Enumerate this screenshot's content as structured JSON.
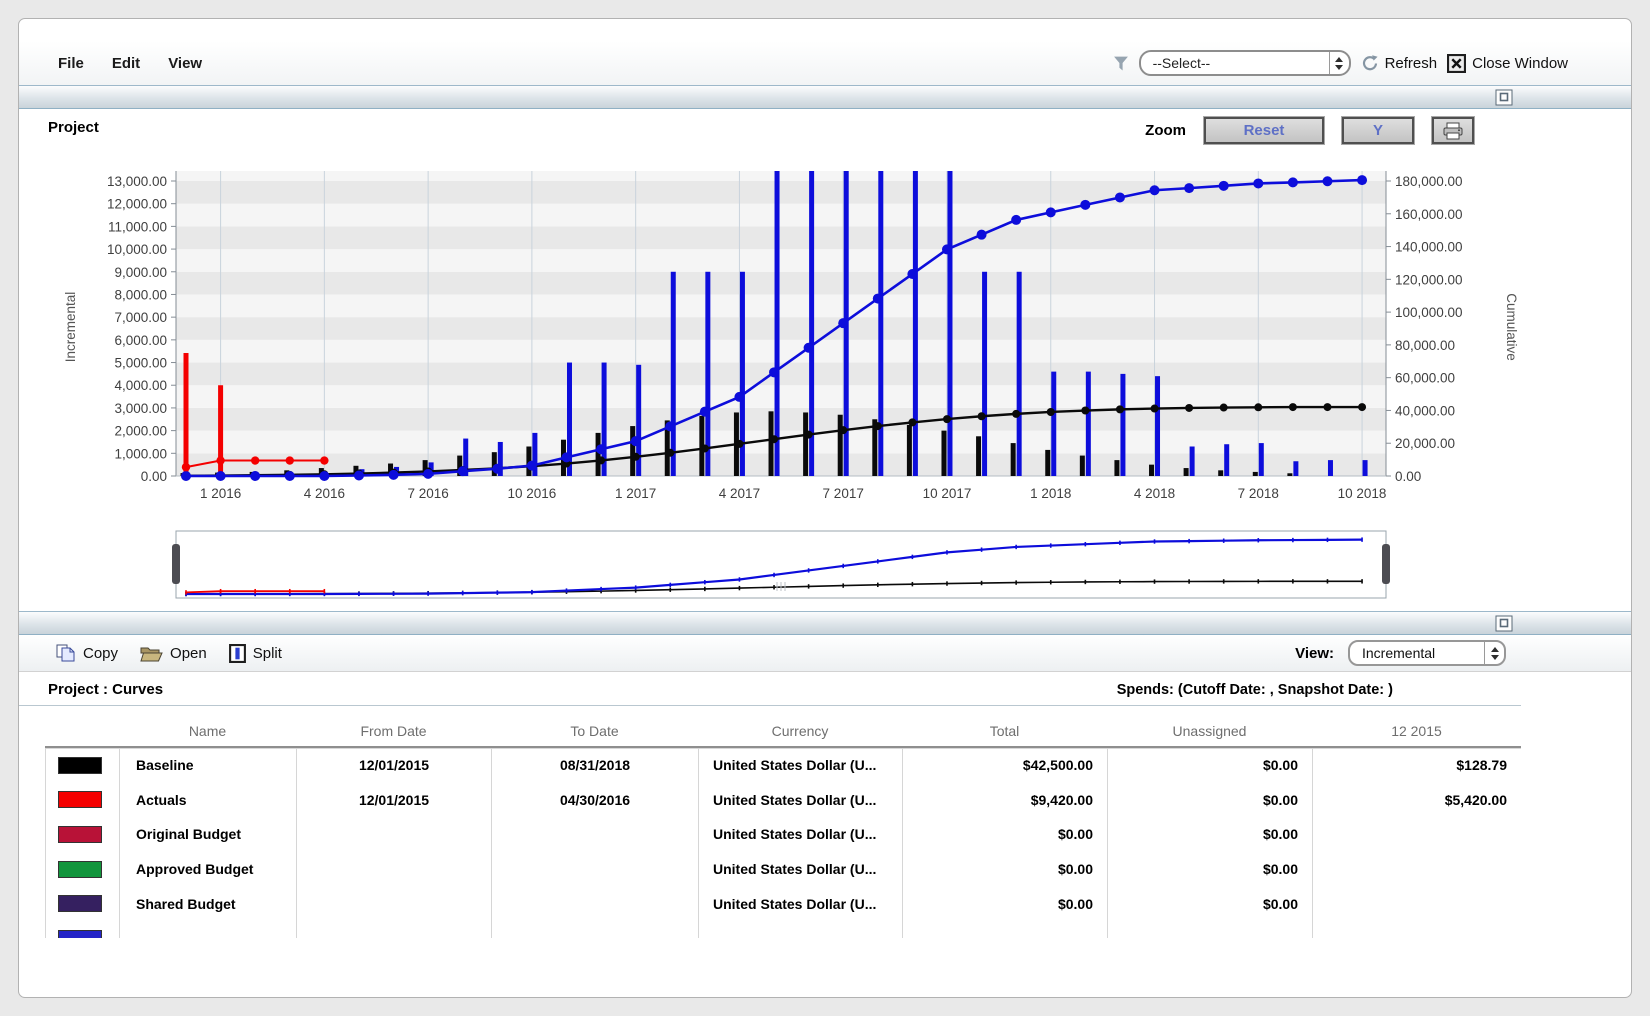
{
  "menubar": {
    "items": [
      "File",
      "Edit",
      "View"
    ],
    "filter_select_value": "--Select--",
    "refresh_label": "Refresh",
    "close_label": "Close Window"
  },
  "chart_panel": {
    "title": "Project",
    "zoom_label": "Zoom",
    "reset_label": "Reset",
    "y_label": "Y"
  },
  "chart_data": {
    "type": "combo-bar-line",
    "months": 35,
    "start_month": "12 2015",
    "left_axis": {
      "label": "Incremental",
      "min": 0,
      "max": 13000,
      "step": 1000,
      "tick_labels": [
        "0.00",
        "1,000.00",
        "2,000.00",
        "3,000.00",
        "4,000.00",
        "5,000.00",
        "6,000.00",
        "7,000.00",
        "8,000.00",
        "9,000.00",
        "10,000.00",
        "11,000.00",
        "12,000.00",
        "13,000.00"
      ]
    },
    "right_axis": {
      "label": "Cumulative",
      "min": 0,
      "max": 180000,
      "step": 20000,
      "tick_labels": [
        "0.00",
        "20,000.00",
        "40,000.00",
        "60,000.00",
        "80,000.00",
        "100,000.00",
        "120,000.00",
        "140,000.00",
        "160,000.00",
        "180,000.00"
      ]
    },
    "x_ticks": [
      {
        "label": "1 2016",
        "m": 1
      },
      {
        "label": "4 2016",
        "m": 4
      },
      {
        "label": "7 2016",
        "m": 7
      },
      {
        "label": "10 2016",
        "m": 10
      },
      {
        "label": "1 2017",
        "m": 13
      },
      {
        "label": "4 2017",
        "m": 16
      },
      {
        "label": "7 2017",
        "m": 19
      },
      {
        "label": "10 2017",
        "m": 22
      },
      {
        "label": "1 2018",
        "m": 25
      },
      {
        "label": "4 2018",
        "m": 28
      },
      {
        "label": "7 2018",
        "m": 31
      },
      {
        "label": "10 2018",
        "m": 34
      }
    ],
    "series": [
      {
        "name": "baseline-black",
        "color": "#0a0a0a",
        "incremental": [
          129,
          150,
          180,
          250,
          350,
          450,
          550,
          700,
          900,
          1050,
          1300,
          1600,
          1900,
          2200,
          2450,
          2650,
          2800,
          2850,
          2800,
          2700,
          2500,
          2250,
          2000,
          1750,
          1450,
          1150,
          900,
          700,
          500,
          350,
          250,
          180,
          120,
          0,
          0
        ],
        "line_end_month": 34
      },
      {
        "name": "actuals-red",
        "color": "#f40000",
        "incremental": [
          5420,
          4000,
          0,
          0,
          0,
          0,
          0,
          0,
          0,
          0,
          0,
          0,
          0,
          0,
          0,
          0,
          0,
          0,
          0,
          0,
          0,
          0,
          0,
          0,
          0,
          0,
          0,
          0,
          0,
          0,
          0,
          0,
          0,
          0,
          0
        ],
        "line_end_month": 4
      },
      {
        "name": "planned-blue",
        "color": "#0d0ddb",
        "incremental": [
          0,
          0,
          0,
          0,
          0,
          300,
          400,
          600,
          1650,
          1500,
          1900,
          5000,
          5000,
          4900,
          9000,
          9000,
          9000,
          15000,
          15000,
          15000,
          15000,
          15000,
          15000,
          9000,
          9000,
          4600,
          4600,
          4500,
          4400,
          1300,
          1400,
          1450,
          650,
          700,
          700
        ],
        "line_end_month": 34
      }
    ],
    "note": "bars = incremental (left axis), lines with dots = cumulative (right axis)"
  },
  "toolbar": {
    "copy_label": "Copy",
    "open_label": "Open",
    "split_label": "Split",
    "view_label": "View:",
    "view_value": "Incremental"
  },
  "table_section": {
    "title": "Project : Curves",
    "spends_label": "Spends: (Cutoff Date: , Snapshot Date: )",
    "columns": [
      "Name",
      "From Date",
      "To Date",
      "Currency",
      "Total",
      "Unassigned",
      "12 2015"
    ],
    "rows": [
      {
        "swatch": "#000000",
        "name": "Baseline",
        "from": "12/01/2015",
        "to": "08/31/2018",
        "currency": "United States Dollar (U...",
        "total": "$42,500.00",
        "unassigned": "$0.00",
        "dec2015": "$128.79"
      },
      {
        "swatch": "#f40000",
        "name": "Actuals",
        "from": "12/01/2015",
        "to": "04/30/2016",
        "currency": "United States Dollar (U...",
        "total": "$9,420.00",
        "unassigned": "$0.00",
        "dec2015": "$5,420.00"
      },
      {
        "swatch": "#b81237",
        "name": "Original Budget",
        "from": "",
        "to": "",
        "currency": "United States Dollar (U...",
        "total": "$0.00",
        "unassigned": "$0.00",
        "dec2015": ""
      },
      {
        "swatch": "#12953c",
        "name": "Approved Budget",
        "from": "",
        "to": "",
        "currency": "United States Dollar (U...",
        "total": "$0.00",
        "unassigned": "$0.00",
        "dec2015": ""
      },
      {
        "swatch": "#352060",
        "name": "Shared Budget",
        "from": "",
        "to": "",
        "currency": "United States Dollar (U...",
        "total": "$0.00",
        "unassigned": "$0.00",
        "dec2015": ""
      }
    ],
    "partial_row_swatch": "#2525c8"
  }
}
